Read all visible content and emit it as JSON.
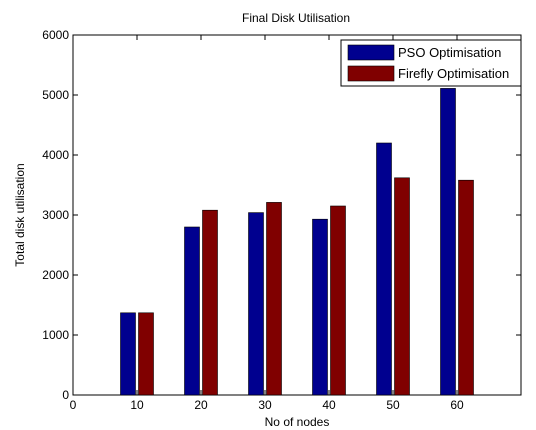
{
  "chart_data": {
    "type": "bar",
    "title": "Final Disk Utilisation",
    "xlabel": "No of nodes",
    "ylabel": "Total disk utilisation",
    "x_origin_label": "0",
    "categories": [
      "10",
      "20",
      "30",
      "40",
      "50",
      "60"
    ],
    "series": [
      {
        "name": "PSO Optimisation",
        "color": "#00008f",
        "values": [
          1370,
          2800,
          3040,
          2930,
          4200,
          5110
        ]
      },
      {
        "name": "Firefly Optimisation",
        "color": "#800000",
        "values": [
          1370,
          3080,
          3210,
          3150,
          3620,
          3580
        ]
      }
    ],
    "ylim": [
      0,
      6000
    ],
    "yticks": [
      0,
      1000,
      2000,
      3000,
      4000,
      5000,
      6000
    ],
    "xlim": [
      0,
      70
    ],
    "x_positions": [
      10,
      20,
      30,
      40,
      50,
      60
    ],
    "grid": false,
    "legend_position": "top-right"
  }
}
